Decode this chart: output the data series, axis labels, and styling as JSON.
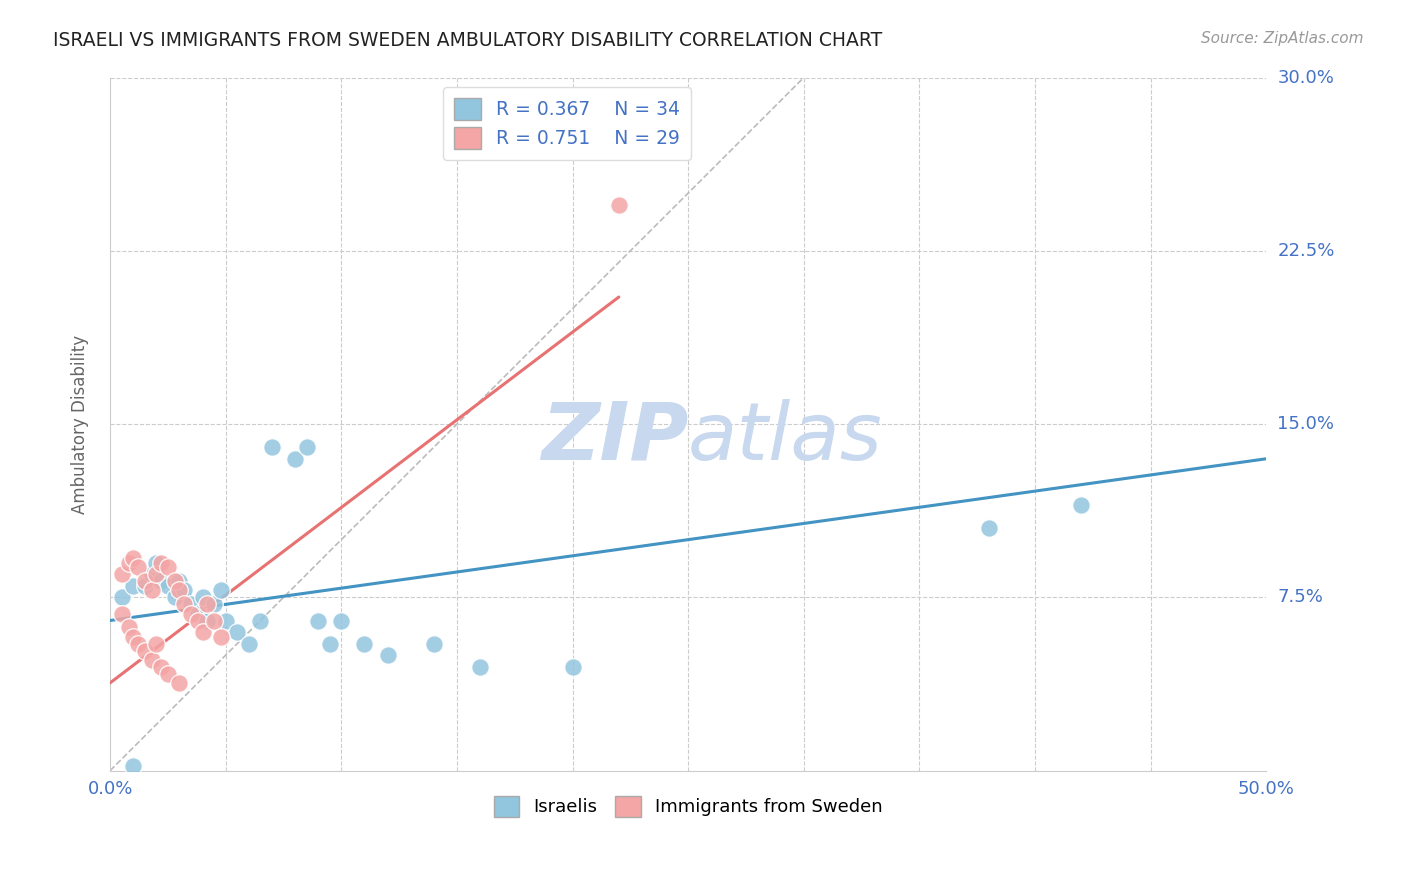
{
  "title": "ISRAELI VS IMMIGRANTS FROM SWEDEN AMBULATORY DISABILITY CORRELATION CHART",
  "source": "Source: ZipAtlas.com",
  "ylabel": "Ambulatory Disability",
  "xmin": 0.0,
  "xmax": 0.5,
  "ymin": 0.0,
  "ymax": 0.3,
  "xticks": [
    0.0,
    0.05,
    0.1,
    0.15,
    0.2,
    0.25,
    0.3,
    0.35,
    0.4,
    0.45,
    0.5
  ],
  "yticks": [
    0.0,
    0.075,
    0.15,
    0.225,
    0.3
  ],
  "grid_color": "#cccccc",
  "background_color": "#ffffff",
  "watermark_zip": "ZIP",
  "watermark_atlas": "atlas",
  "watermark_color": "#c8d8ee",
  "legend_R_israelis": "0.367",
  "legend_N_israelis": "34",
  "legend_R_immigrants": "0.751",
  "legend_N_immigrants": "29",
  "israelis_color": "#92c5de",
  "immigrants_color": "#f4a5a5",
  "israelis_line_color": "#4393c3",
  "immigrants_line_color": "#e87272",
  "diagonal_color": "#bbbbbb",
  "israelis_scatter_x": [
    0.005,
    0.01,
    0.015,
    0.018,
    0.02,
    0.022,
    0.025,
    0.028,
    0.03,
    0.032,
    0.035,
    0.038,
    0.04,
    0.042,
    0.045,
    0.048,
    0.05,
    0.055,
    0.06,
    0.065,
    0.07,
    0.08,
    0.085,
    0.09,
    0.095,
    0.1,
    0.11,
    0.12,
    0.14,
    0.16,
    0.2,
    0.38,
    0.42,
    0.01
  ],
  "israelis_scatter_y": [
    0.075,
    0.08,
    0.08,
    0.085,
    0.09,
    0.082,
    0.08,
    0.075,
    0.082,
    0.078,
    0.072,
    0.068,
    0.075,
    0.065,
    0.072,
    0.078,
    0.065,
    0.06,
    0.055,
    0.065,
    0.14,
    0.135,
    0.14,
    0.065,
    0.055,
    0.065,
    0.055,
    0.05,
    0.055,
    0.045,
    0.045,
    0.105,
    0.115,
    0.002
  ],
  "immigrants_scatter_x": [
    0.005,
    0.008,
    0.01,
    0.012,
    0.015,
    0.018,
    0.02,
    0.022,
    0.025,
    0.028,
    0.03,
    0.032,
    0.035,
    0.038,
    0.04,
    0.042,
    0.045,
    0.048,
    0.005,
    0.008,
    0.01,
    0.012,
    0.015,
    0.018,
    0.02,
    0.022,
    0.025,
    0.03,
    0.22
  ],
  "immigrants_scatter_y": [
    0.085,
    0.09,
    0.092,
    0.088,
    0.082,
    0.078,
    0.085,
    0.09,
    0.088,
    0.082,
    0.078,
    0.072,
    0.068,
    0.065,
    0.06,
    0.072,
    0.065,
    0.058,
    0.068,
    0.062,
    0.058,
    0.055,
    0.052,
    0.048,
    0.055,
    0.045,
    0.042,
    0.038,
    0.245
  ],
  "israelis_line_x": [
    0.0,
    0.5
  ],
  "israelis_line_y": [
    0.065,
    0.135
  ],
  "immigrants_line_x": [
    0.0,
    0.22
  ],
  "immigrants_line_y": [
    0.038,
    0.205
  ],
  "diagonal_line_x": [
    0.0,
    0.3
  ],
  "diagonal_line_y": [
    0.0,
    0.3
  ],
  "tick_color": "#4472c4",
  "ylabel_color": "#666666",
  "title_color": "#222222",
  "source_color": "#999999"
}
